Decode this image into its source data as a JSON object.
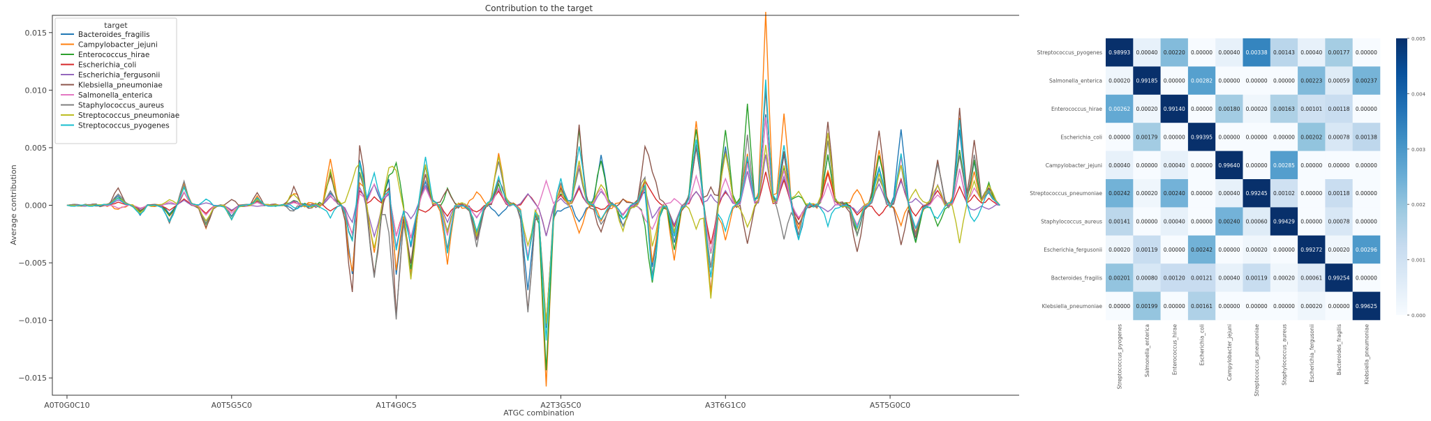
{
  "chart_data": [
    {
      "type": "line",
      "title": "Contribution to the target",
      "xlabel": "ATGC combination",
      "ylabel": "Average contribution",
      "xlim": [
        -4,
        262
      ],
      "ylim": [
        -0.0165,
        0.0165
      ],
      "yticks": [
        0.015,
        0.01,
        0.005,
        0.0,
        -0.005,
        -0.01,
        -0.015
      ],
      "ytick_labels": [
        "0.015",
        "0.010",
        "0.005",
        "0.000",
        "−0.005",
        "−0.010",
        "−0.015"
      ],
      "xticks": [
        0,
        45,
        90,
        135,
        180,
        225
      ],
      "xtick_labels": [
        "A0T0G0C10",
        "A0T5G5C0",
        "A1T4G0C5",
        "A2T3G5C0",
        "A3T6G1C0",
        "A5T5G0C0"
      ],
      "n_points": 256,
      "legend": {
        "title": "target",
        "position": "upper-left"
      },
      "series": [
        {
          "name": "Bacteroides_fragilis",
          "color": "#1f77b4",
          "scale": 0.7,
          "seed": 1
        },
        {
          "name": "Campylobacter_jejuni",
          "color": "#ff7f0e",
          "scale": 0.95,
          "seed": 2
        },
        {
          "name": "Enterococcus_hirae",
          "color": "#2ca02c",
          "scale": 0.8,
          "seed": 3
        },
        {
          "name": "Escherichia_coli",
          "color": "#d62728",
          "scale": 0.35,
          "seed": 4
        },
        {
          "name": "Escherichia_fergusonii",
          "color": "#9467bd",
          "scale": 0.3,
          "seed": 5
        },
        {
          "name": "Klebsiella_pneumoniae",
          "color": "#8c564b",
          "scale": 1.0,
          "seed": 6
        },
        {
          "name": "Salmonella_enterica",
          "color": "#e377c2",
          "scale": 0.45,
          "seed": 7
        },
        {
          "name": "Staphylococcus_aureus",
          "color": "#7f7f7f",
          "scale": 0.85,
          "seed": 8
        },
        {
          "name": "Streptococcus_pneumoniae",
          "color": "#bcbd22",
          "scale": 0.75,
          "seed": 9
        },
        {
          "name": "Streptococcus_pyogenes",
          "color": "#17becf",
          "scale": 0.78,
          "seed": 10
        }
      ]
    },
    {
      "type": "heatmap",
      "rows": [
        "Streptococcus_pyogenes",
        "Salmonella_enterica",
        "Enterococcus_hirae",
        "Escherichia_coli",
        "Campylobacter_jejuni",
        "Streptococcus_pneumoniae",
        "Staphylococcus_aureus",
        "Escherichia_fergusonii",
        "Bacteroides_fragilis",
        "Klebsiella_pneumoniae"
      ],
      "columns": [
        "Streptococcus_pyogenes",
        "Salmonella_enterica",
        "Enterococcus_hirae",
        "Escherichia_coli",
        "Campylobacter_jejuni",
        "Streptococcus_pneumoniae",
        "Staphylococcus_aureus",
        "Escherichia_fergusonii",
        "Bacteroides_fragilis",
        "Klebsiella_pneumoniae"
      ],
      "values": [
        [
          "0.98993",
          "0.00040",
          "0.00220",
          "0.00000",
          "0.00040",
          "0.00338",
          "0.00143",
          "0.00040",
          "0.00177",
          "0.00000"
        ],
        [
          "0.00020",
          "0.99185",
          "0.00000",
          "0.00282",
          "0.00000",
          "0.00000",
          "0.00000",
          "0.00223",
          "0.00059",
          "0.00237"
        ],
        [
          "0.00262",
          "0.00020",
          "0.99140",
          "0.00000",
          "0.00180",
          "0.00020",
          "0.00163",
          "0.00101",
          "0.00118",
          "0.00000"
        ],
        [
          "0.00000",
          "0.00179",
          "0.00000",
          "0.99395",
          "0.00000",
          "0.00000",
          "0.00000",
          "0.00202",
          "0.00078",
          "0.00138"
        ],
        [
          "0.00040",
          "0.00000",
          "0.00040",
          "0.00000",
          "0.99640",
          "0.00000",
          "0.00285",
          "0.00000",
          "0.00000",
          "0.00000"
        ],
        [
          "0.00242",
          "0.00020",
          "0.00240",
          "0.00000",
          "0.00040",
          "0.99245",
          "0.00102",
          "0.00000",
          "0.00118",
          "0.00000"
        ],
        [
          "0.00141",
          "0.00000",
          "0.00040",
          "0.00000",
          "0.00240",
          "0.00060",
          "0.99429",
          "0.00000",
          "0.00078",
          "0.00000"
        ],
        [
          "0.00020",
          "0.00119",
          "0.00000",
          "0.00242",
          "0.00000",
          "0.00020",
          "0.00000",
          "0.99272",
          "0.00020",
          "0.00296"
        ],
        [
          "0.00201",
          "0.00080",
          "0.00120",
          "0.00121",
          "0.00040",
          "0.00119",
          "0.00020",
          "0.00061",
          "0.99254",
          "0.00000"
        ],
        [
          "0.00000",
          "0.00199",
          "0.00000",
          "0.00161",
          "0.00000",
          "0.00000",
          "0.00000",
          "0.00020",
          "0.00000",
          "0.99625"
        ]
      ],
      "colorbar": {
        "vmin": 0.0,
        "vmax": 0.005,
        "ticks": [
          0.0,
          0.001,
          0.002,
          0.003,
          0.004,
          0.005
        ],
        "tick_labels": [
          "0.000",
          "0.001",
          "0.002",
          "0.003",
          "0.004",
          "0.005"
        ],
        "colormap": "Blues"
      }
    }
  ]
}
